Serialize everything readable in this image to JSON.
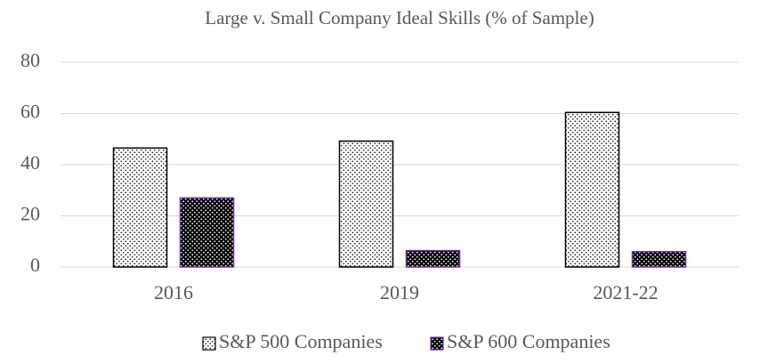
{
  "chart_data": {
    "type": "bar",
    "title": "Large v. Small Company Ideal Skills (% of Sample)",
    "categories": [
      "2016",
      "2019",
      "2021-22"
    ],
    "series": [
      {
        "name": "S&P 500 Companies",
        "color": "#ffffff",
        "values": [
          46.5,
          49.2,
          60.4
        ]
      },
      {
        "name": "S&P 600 Companies",
        "color": "#000000",
        "values": [
          27,
          6.4,
          6
        ]
      }
    ],
    "ylim": [
      0,
      80
    ],
    "yticks": [
      0,
      20,
      40,
      60,
      80
    ],
    "grid": true,
    "legend": "bottom"
  }
}
